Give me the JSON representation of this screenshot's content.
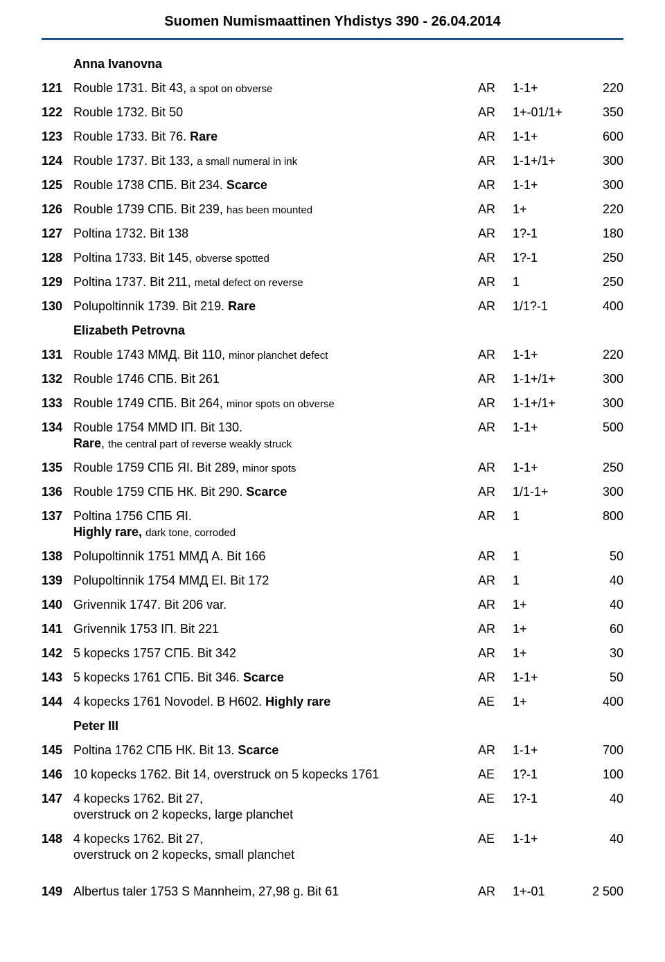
{
  "header": {
    "title": "Suomen Numismaattinen Yhdistys  390 - 26.04.2014"
  },
  "sections": [
    {
      "heading": "Anna Ivanovna"
    },
    {
      "lot": "121",
      "desc_html": "Rouble 1731. Bit 43, <small>a spot on obverse</small>",
      "metal": "AR",
      "grade": "1-1+",
      "price": "220"
    },
    {
      "lot": "122",
      "desc_html": "Rouble 1732. Bit 50",
      "metal": "AR",
      "grade": "1+-01/1+",
      "price": "350"
    },
    {
      "lot": "123",
      "desc_html": "Rouble 1733. Bit 76. <b>Rare</b>",
      "metal": "AR",
      "grade": "1-1+",
      "price": "600"
    },
    {
      "lot": "124",
      "desc_html": "Rouble 1737. Bit 133, <small>a small numeral in ink</small>",
      "metal": "AR",
      "grade": "1-1+/1+",
      "price": "300"
    },
    {
      "lot": "125",
      "desc_html": "Rouble 1738 СПБ. Bit 234. <b>Scarce</b>",
      "metal": "AR",
      "grade": "1-1+",
      "price": "300"
    },
    {
      "lot": "126",
      "desc_html": "Rouble 1739 СПБ. Bit 239, <small>has been mounted</small>",
      "metal": "AR",
      "grade": "1+",
      "price": "220"
    },
    {
      "lot": "127",
      "desc_html": "Poltina 1732. Bit 138",
      "metal": "AR",
      "grade": "1?-1",
      "price": "180"
    },
    {
      "lot": "128",
      "desc_html": "Poltina 1733. Bit 145, <small>obverse spotted</small>",
      "metal": "AR",
      "grade": "1?-1",
      "price": "250"
    },
    {
      "lot": "129",
      "desc_html": "Poltina 1737. Bit 211, <small>metal defect on reverse</small>",
      "metal": "AR",
      "grade": "1",
      "price": "250"
    },
    {
      "lot": "130",
      "desc_html": "Polupoltinnik 1739. Bit 219. <b>Rare</b>",
      "metal": "AR",
      "grade": "1/1?-1",
      "price": "400"
    },
    {
      "heading": "Elizabeth Petrovna"
    },
    {
      "lot": "131",
      "desc_html": "Rouble 1743 ММД. Bit 110, <small>minor planchet defect</small>",
      "metal": "AR",
      "grade": "1-1+",
      "price": "220"
    },
    {
      "lot": "132",
      "desc_html": "Rouble 1746 СПБ. Bit 261",
      "metal": "AR",
      "grade": "1-1+/1+",
      "price": "300"
    },
    {
      "lot": "133",
      "desc_html": "Rouble 1749 СПБ. Bit 264, <small>minor spots on obverse</small>",
      "metal": "AR",
      "grade": "1-1+/1+",
      "price": "300"
    },
    {
      "lot": "134",
      "desc_html": "Rouble 1754 MMD IП. Bit 130.<span class=\"subline\"><b>Rare</b>, <small>the central part of reverse weakly struck</small></span>",
      "metal": "AR",
      "grade": "1-1+",
      "price": "500"
    },
    {
      "lot": "135",
      "desc_html": "Rouble 1759 СПБ ЯI. Bit 289, <small>minor spots</small>",
      "metal": "AR",
      "grade": "1-1+",
      "price": "250"
    },
    {
      "lot": "136",
      "desc_html": "Rouble 1759 СПБ НК. Bit 290. <b>Scarce</b>",
      "metal": "AR",
      "grade": "1/1-1+",
      "price": "300"
    },
    {
      "lot": "137",
      "desc_html": "Poltina 1756 СПБ ЯI.<span class=\"subline\"><b>Highly rare,</b> <small>dark tone, corroded</small></span>",
      "metal": "AR",
      "grade": "1",
      "price": "800"
    },
    {
      "lot": "138",
      "desc_html": "Polupoltinnik 1751 ММД А. Bit 166",
      "metal": "AR",
      "grade": "1",
      "price": "50"
    },
    {
      "lot": "139",
      "desc_html": "Polupoltinnik 1754 ММД ЕI. Bit 172",
      "metal": "AR",
      "grade": "1",
      "price": "40"
    },
    {
      "lot": "140",
      "desc_html": "Grivennik 1747. Bit 206 var.",
      "metal": "AR",
      "grade": "1+",
      "price": "40"
    },
    {
      "lot": "141",
      "desc_html": "Grivennik 1753 IП. Bit 221",
      "metal": "AR",
      "grade": "1+",
      "price": "60"
    },
    {
      "lot": "142",
      "desc_html": "5 kopecks 1757 СПБ. Bit 342",
      "metal": "AR",
      "grade": "1+",
      "price": "30"
    },
    {
      "lot": "143",
      "desc_html": "5 kopecks 1761 СПБ. Bit 346. <b>Scarce</b>",
      "metal": "AR",
      "grade": "1-1+",
      "price": "50"
    },
    {
      "lot": "144",
      "desc_html": "4 kopecks 1761 Novodel. B H602. <b>Highly rare</b>",
      "metal": "AE",
      "grade": "1+",
      "price": "400"
    },
    {
      "heading": "Peter III"
    },
    {
      "lot": "145",
      "desc_html": "Poltina 1762 СПБ НК. Bit 13. <b>Scarce</b>",
      "metal": "AR",
      "grade": "1-1+",
      "price": "700"
    },
    {
      "lot": "146",
      "desc_html": "10 kopecks 1762. Bit 14, overstruck on 5 kopecks 1761",
      "metal": "AE",
      "grade": "1?-1",
      "price": "100"
    },
    {
      "lot": "147",
      "desc_html": "4 kopecks 1762. Bit 27,<span class=\"subline\">overstruck on 2 kopecks, large planchet</span>",
      "metal": "AE",
      "grade": "1?-1",
      "price": "40"
    },
    {
      "lot": "148",
      "desc_html": "4 kopecks 1762. Bit 27,<span class=\"subline\">overstruck on 2 kopecks, small planchet</span>",
      "metal": "AE",
      "grade": "1-1+",
      "price": "40"
    },
    {
      "gap": true
    },
    {
      "lot": "149",
      "desc_html": "Albertus taler 1753 S Mannheim, 27,98 g. Bit 61",
      "metal": "AR",
      "grade": "1+-01",
      "price": "2 500"
    }
  ]
}
